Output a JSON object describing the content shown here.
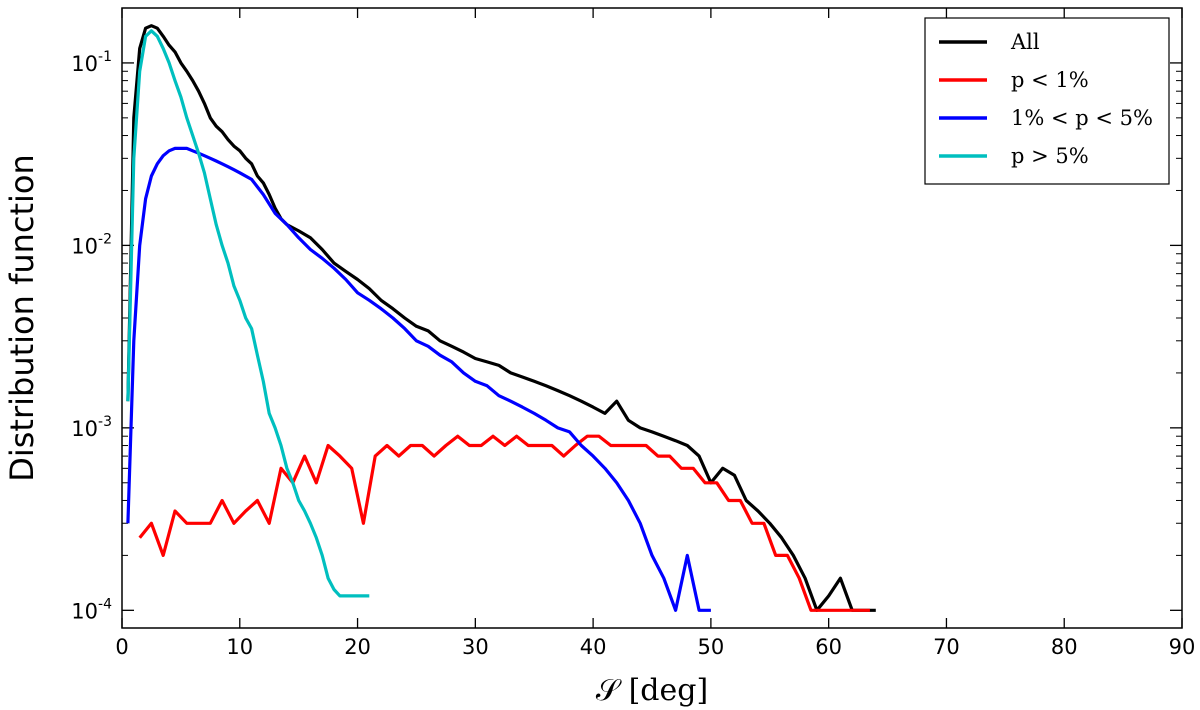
{
  "chart_data": {
    "type": "line",
    "title": "",
    "xlabel": "𝒮 [deg]",
    "ylabel": "Distribution function",
    "xlim": [
      0,
      90
    ],
    "ylim": [
      8e-05,
      0.2
    ],
    "yscale": "log",
    "grid": false,
    "legend_position": "top-right",
    "x_ticks": [
      "0",
      "10",
      "20",
      "30",
      "40",
      "50",
      "60",
      "70",
      "80",
      "90"
    ],
    "y_ticks": [
      {
        "base": "10",
        "exp": "-4",
        "value": 0.0001
      },
      {
        "base": "10",
        "exp": "-3",
        "value": 0.001
      },
      {
        "base": "10",
        "exp": "-2",
        "value": 0.01
      },
      {
        "base": "10",
        "exp": "-1",
        "value": 0.1
      }
    ],
    "series": [
      {
        "name": "All",
        "color": "#000000",
        "points": [
          [
            0.5,
            0.0014
          ],
          [
            1.0,
            0.05
          ],
          [
            1.5,
            0.12
          ],
          [
            2.0,
            0.155
          ],
          [
            2.5,
            0.16
          ],
          [
            3.0,
            0.155
          ],
          [
            3.5,
            0.14
          ],
          [
            4.0,
            0.125
          ],
          [
            4.5,
            0.115
          ],
          [
            5.0,
            0.1
          ],
          [
            5.5,
            0.09
          ],
          [
            6.0,
            0.08
          ],
          [
            6.5,
            0.07
          ],
          [
            7.0,
            0.06
          ],
          [
            7.5,
            0.05
          ],
          [
            8.0,
            0.045
          ],
          [
            8.5,
            0.042
          ],
          [
            9.0,
            0.038
          ],
          [
            9.5,
            0.035
          ],
          [
            10.0,
            0.033
          ],
          [
            10.5,
            0.03
          ],
          [
            11.0,
            0.028
          ],
          [
            11.5,
            0.024
          ],
          [
            12.0,
            0.022
          ],
          [
            12.5,
            0.019
          ],
          [
            13.0,
            0.016
          ],
          [
            13.5,
            0.014
          ],
          [
            14.0,
            0.013
          ],
          [
            15.0,
            0.012
          ],
          [
            16.0,
            0.011
          ],
          [
            17.0,
            0.0095
          ],
          [
            18.0,
            0.008
          ],
          [
            19.0,
            0.0072
          ],
          [
            20.0,
            0.0065
          ],
          [
            21.0,
            0.0058
          ],
          [
            22.0,
            0.005
          ],
          [
            23.0,
            0.0045
          ],
          [
            24.0,
            0.004
          ],
          [
            25.0,
            0.0036
          ],
          [
            26.0,
            0.0034
          ],
          [
            27.0,
            0.003
          ],
          [
            28.0,
            0.0028
          ],
          [
            29.0,
            0.0026
          ],
          [
            30.0,
            0.0024
          ],
          [
            31.0,
            0.0023
          ],
          [
            32.0,
            0.0022
          ],
          [
            33.0,
            0.002
          ],
          [
            34.0,
            0.0019
          ],
          [
            35.0,
            0.0018
          ],
          [
            36.0,
            0.0017
          ],
          [
            37.0,
            0.0016
          ],
          [
            38.0,
            0.0015
          ],
          [
            39.0,
            0.0014
          ],
          [
            40.0,
            0.0013
          ],
          [
            41.0,
            0.0012
          ],
          [
            42.0,
            0.0014
          ],
          [
            43.0,
            0.0011
          ],
          [
            44.0,
            0.001
          ],
          [
            45.0,
            0.00095
          ],
          [
            46.0,
            0.0009
          ],
          [
            47.0,
            0.00085
          ],
          [
            48.0,
            0.0008
          ],
          [
            49.0,
            0.0007
          ],
          [
            50.0,
            0.0005
          ],
          [
            51.0,
            0.0006
          ],
          [
            52.0,
            0.00055
          ],
          [
            53.0,
            0.0004
          ],
          [
            54.0,
            0.00035
          ],
          [
            55.0,
            0.0003
          ],
          [
            56.0,
            0.00025
          ],
          [
            57.0,
            0.0002
          ],
          [
            58.0,
            0.00015
          ],
          [
            59.0,
            0.0001
          ],
          [
            60.0,
            0.00012
          ],
          [
            61.0,
            0.00015
          ],
          [
            62.0,
            0.0001
          ],
          [
            63.0,
            0.0001
          ],
          [
            64.0,
            0.0001
          ]
        ]
      },
      {
        "name": "p < 1%",
        "color": "#ff0000",
        "points": [
          [
            1.5,
            0.00025
          ],
          [
            2.5,
            0.0003
          ],
          [
            3.5,
            0.0002
          ],
          [
            4.5,
            0.00035
          ],
          [
            5.5,
            0.0003
          ],
          [
            6.5,
            0.0003
          ],
          [
            7.5,
            0.0003
          ],
          [
            8.5,
            0.0004
          ],
          [
            9.5,
            0.0003
          ],
          [
            10.5,
            0.00035
          ],
          [
            11.5,
            0.0004
          ],
          [
            12.5,
            0.0003
          ],
          [
            13.5,
            0.0006
          ],
          [
            14.5,
            0.0005
          ],
          [
            15.5,
            0.0007
          ],
          [
            16.5,
            0.0005
          ],
          [
            17.5,
            0.0008
          ],
          [
            18.5,
            0.0007
          ],
          [
            19.5,
            0.0006
          ],
          [
            20.5,
            0.0003
          ],
          [
            21.5,
            0.0007
          ],
          [
            22.5,
            0.0008
          ],
          [
            23.5,
            0.0007
          ],
          [
            24.5,
            0.0008
          ],
          [
            25.5,
            0.0008
          ],
          [
            26.5,
            0.0007
          ],
          [
            27.5,
            0.0008
          ],
          [
            28.5,
            0.0009
          ],
          [
            29.5,
            0.0008
          ],
          [
            30.5,
            0.0008
          ],
          [
            31.5,
            0.0009
          ],
          [
            32.5,
            0.0008
          ],
          [
            33.5,
            0.0009
          ],
          [
            34.5,
            0.0008
          ],
          [
            35.5,
            0.0008
          ],
          [
            36.5,
            0.0008
          ],
          [
            37.5,
            0.0007
          ],
          [
            38.5,
            0.0008
          ],
          [
            39.5,
            0.0009
          ],
          [
            40.5,
            0.0009
          ],
          [
            41.5,
            0.0008
          ],
          [
            42.5,
            0.0008
          ],
          [
            43.5,
            0.0008
          ],
          [
            44.5,
            0.0008
          ],
          [
            45.5,
            0.0007
          ],
          [
            46.5,
            0.0007
          ],
          [
            47.5,
            0.0006
          ],
          [
            48.5,
            0.0006
          ],
          [
            49.5,
            0.0005
          ],
          [
            50.5,
            0.0005
          ],
          [
            51.5,
            0.0004
          ],
          [
            52.5,
            0.0004
          ],
          [
            53.5,
            0.0003
          ],
          [
            54.5,
            0.0003
          ],
          [
            55.5,
            0.0002
          ],
          [
            56.5,
            0.0002
          ],
          [
            57.5,
            0.00015
          ],
          [
            58.5,
            0.0001
          ],
          [
            59.5,
            0.0001
          ],
          [
            60.5,
            0.0001
          ],
          [
            61.5,
            0.0001
          ],
          [
            63.5,
            0.0001
          ]
        ]
      },
      {
        "name": "1% < p < 5%",
        "color": "#0000ff",
        "points": [
          [
            0.5,
            0.0003
          ],
          [
            1.0,
            0.003
          ],
          [
            1.5,
            0.01
          ],
          [
            2.0,
            0.018
          ],
          [
            2.5,
            0.024
          ],
          [
            3.0,
            0.028
          ],
          [
            3.5,
            0.031
          ],
          [
            4.0,
            0.033
          ],
          [
            4.5,
            0.034
          ],
          [
            5.0,
            0.034
          ],
          [
            5.5,
            0.034
          ],
          [
            6.0,
            0.033
          ],
          [
            6.5,
            0.032
          ],
          [
            7.0,
            0.031
          ],
          [
            7.5,
            0.03
          ],
          [
            8.0,
            0.029
          ],
          [
            8.5,
            0.028
          ],
          [
            9.0,
            0.027
          ],
          [
            9.5,
            0.026
          ],
          [
            10.0,
            0.025
          ],
          [
            11.0,
            0.023
          ],
          [
            12.0,
            0.019
          ],
          [
            13.0,
            0.015
          ],
          [
            14.0,
            0.013
          ],
          [
            15.0,
            0.011
          ],
          [
            16.0,
            0.0095
          ],
          [
            17.0,
            0.0085
          ],
          [
            18.0,
            0.0075
          ],
          [
            19.0,
            0.0065
          ],
          [
            20.0,
            0.0055
          ],
          [
            21.0,
            0.005
          ],
          [
            22.0,
            0.0045
          ],
          [
            23.0,
            0.004
          ],
          [
            24.0,
            0.0035
          ],
          [
            25.0,
            0.003
          ],
          [
            26.0,
            0.0028
          ],
          [
            27.0,
            0.0025
          ],
          [
            28.0,
            0.0023
          ],
          [
            29.0,
            0.002
          ],
          [
            30.0,
            0.0018
          ],
          [
            31.0,
            0.0017
          ],
          [
            32.0,
            0.0015
          ],
          [
            33.0,
            0.0014
          ],
          [
            34.0,
            0.0013
          ],
          [
            35.0,
            0.0012
          ],
          [
            36.0,
            0.0011
          ],
          [
            37.0,
            0.001
          ],
          [
            38.0,
            0.00095
          ],
          [
            39.0,
            0.0008
          ],
          [
            40.0,
            0.0007
          ],
          [
            41.0,
            0.0006
          ],
          [
            42.0,
            0.0005
          ],
          [
            43.0,
            0.0004
          ],
          [
            44.0,
            0.0003
          ],
          [
            45.0,
            0.0002
          ],
          [
            46.0,
            0.00015
          ],
          [
            47.0,
            0.0001
          ],
          [
            48.0,
            0.0002
          ],
          [
            49.0,
            0.0001
          ],
          [
            50.0,
            0.0001
          ]
        ]
      },
      {
        "name": "p > 5%",
        "color": "#00bfbf",
        "points": [
          [
            0.5,
            0.0014
          ],
          [
            1.0,
            0.03
          ],
          [
            1.5,
            0.09
          ],
          [
            2.0,
            0.14
          ],
          [
            2.5,
            0.15
          ],
          [
            3.0,
            0.14
          ],
          [
            3.5,
            0.12
          ],
          [
            4.0,
            0.1
          ],
          [
            4.5,
            0.08
          ],
          [
            5.0,
            0.065
          ],
          [
            5.5,
            0.05
          ],
          [
            6.0,
            0.04
          ],
          [
            6.5,
            0.032
          ],
          [
            7.0,
            0.025
          ],
          [
            7.5,
            0.018
          ],
          [
            8.0,
            0.013
          ],
          [
            8.5,
            0.01
          ],
          [
            9.0,
            0.008
          ],
          [
            9.5,
            0.006
          ],
          [
            10.0,
            0.005
          ],
          [
            10.5,
            0.004
          ],
          [
            11.0,
            0.0035
          ],
          [
            11.5,
            0.0025
          ],
          [
            12.0,
            0.0018
          ],
          [
            12.5,
            0.0012
          ],
          [
            13.0,
            0.001
          ],
          [
            13.5,
            0.0008
          ],
          [
            14.0,
            0.0006
          ],
          [
            14.5,
            0.0005
          ],
          [
            15.0,
            0.0004
          ],
          [
            15.5,
            0.00035
          ],
          [
            16.0,
            0.0003
          ],
          [
            16.5,
            0.00025
          ],
          [
            17.0,
            0.0002
          ],
          [
            17.5,
            0.00015
          ],
          [
            18.0,
            0.00013
          ],
          [
            18.5,
            0.00012
          ],
          [
            19.0,
            0.00012
          ],
          [
            20.0,
            0.00012
          ],
          [
            21.0,
            0.00012
          ]
        ]
      }
    ]
  }
}
